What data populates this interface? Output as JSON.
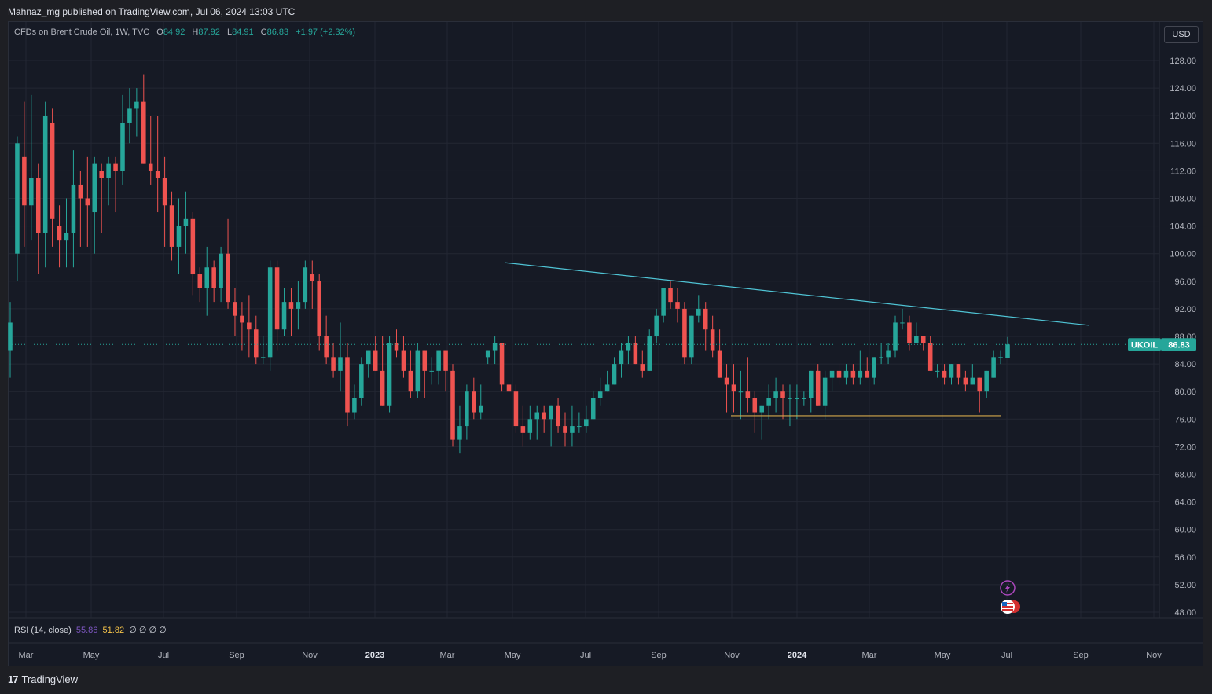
{
  "header": {
    "publisher": "Mahnaz_mg published on TradingView.com, Jul 06, 2024 13:03 UTC"
  },
  "legend": {
    "symbol": "CFDs on Brent Crude Oil, 1W, TVC",
    "open_label": "O",
    "open": "84.92",
    "high_label": "H",
    "high": "87.92",
    "low_label": "L",
    "low": "84.91",
    "close_label": "C",
    "close": "86.83",
    "change": "+1.97 (+2.32%)"
  },
  "currency_button": "USD",
  "price_tag": {
    "symbol": "UKOIL",
    "value": "86.83"
  },
  "rsi": {
    "label": "RSI (14, close)",
    "v1": "55.86",
    "v2": "51.82",
    "extras": "∅ ∅ ∅ ∅"
  },
  "footer": {
    "brand": "TradingView",
    "logo": "17"
  },
  "colors": {
    "up": "#26a69a",
    "down": "#ef5350",
    "trendline": "#4fc3d4",
    "support": "#d4a84b",
    "background": "#161a25",
    "grid": "#232733"
  },
  "icons": [
    "lightning-icon",
    "us-flag-icon"
  ],
  "chart_data": {
    "type": "candlestick",
    "interval": "1W",
    "y_axis": {
      "ticks": [
        "128.00",
        "124.00",
        "120.00",
        "116.00",
        "112.00",
        "108.00",
        "104.00",
        "100.00",
        "96.00",
        "92.00",
        "88.00",
        "84.00",
        "80.00",
        "76.00",
        "72.00",
        "68.00",
        "64.00",
        "60.00",
        "56.00",
        "52.00",
        "48.00"
      ],
      "ylim": [
        46.5,
        133
      ]
    },
    "x_axis": {
      "ticks": [
        "Mar",
        "May",
        "Jul",
        "Sep",
        "Nov",
        "2023",
        "Mar",
        "May",
        "Jul",
        "Sep",
        "Nov",
        "2024",
        "Mar",
        "May",
        "Jul",
        "Sep",
        "Nov"
      ],
      "bold": [
        "2023",
        "2024"
      ]
    },
    "last_price": 86.83,
    "candles": [
      {
        "o": 86,
        "h": 93,
        "l": 82,
        "c": 90
      },
      {
        "o": 100,
        "h": 117,
        "l": 96,
        "c": 116
      },
      {
        "o": 114,
        "h": 122,
        "l": 101,
        "c": 107
      },
      {
        "o": 107,
        "h": 123,
        "l": 102,
        "c": 111
      },
      {
        "o": 111,
        "h": 113,
        "l": 97,
        "c": 103
      },
      {
        "o": 103,
        "h": 122,
        "l": 98,
        "c": 120
      },
      {
        "o": 119,
        "h": 121,
        "l": 101,
        "c": 105
      },
      {
        "o": 104,
        "h": 107,
        "l": 98,
        "c": 102
      },
      {
        "o": 102,
        "h": 108,
        "l": 98,
        "c": 103
      },
      {
        "o": 103,
        "h": 115,
        "l": 98,
        "c": 110
      },
      {
        "o": 110,
        "h": 112,
        "l": 101,
        "c": 108
      },
      {
        "o": 108,
        "h": 114,
        "l": 101,
        "c": 107
      },
      {
        "o": 106,
        "h": 114,
        "l": 100,
        "c": 113
      },
      {
        "o": 112,
        "h": 113,
        "l": 103,
        "c": 111
      },
      {
        "o": 111,
        "h": 114,
        "l": 107,
        "c": 113
      },
      {
        "o": 113,
        "h": 114,
        "l": 106,
        "c": 112
      },
      {
        "o": 112,
        "h": 123,
        "l": 110,
        "c": 119
      },
      {
        "o": 119,
        "h": 124,
        "l": 116,
        "c": 121
      },
      {
        "o": 121,
        "h": 124,
        "l": 117,
        "c": 122
      },
      {
        "o": 122,
        "h": 126,
        "l": 113,
        "c": 113
      },
      {
        "o": 113,
        "h": 120,
        "l": 110,
        "c": 112
      },
      {
        "o": 112,
        "h": 120,
        "l": 106,
        "c": 111
      },
      {
        "o": 111,
        "h": 114,
        "l": 101,
        "c": 107
      },
      {
        "o": 107,
        "h": 109,
        "l": 99,
        "c": 101
      },
      {
        "o": 101,
        "h": 108,
        "l": 97,
        "c": 104
      },
      {
        "o": 104,
        "h": 109,
        "l": 100,
        "c": 105
      },
      {
        "o": 105,
        "h": 106,
        "l": 94,
        "c": 97
      },
      {
        "o": 97,
        "h": 98,
        "l": 93,
        "c": 95
      },
      {
        "o": 95,
        "h": 101,
        "l": 91,
        "c": 98
      },
      {
        "o": 98,
        "h": 99,
        "l": 93,
        "c": 95
      },
      {
        "o": 95,
        "h": 101,
        "l": 93,
        "c": 100
      },
      {
        "o": 100,
        "h": 105,
        "l": 92,
        "c": 93
      },
      {
        "o": 93,
        "h": 95,
        "l": 88,
        "c": 91
      },
      {
        "o": 91,
        "h": 93,
        "l": 86,
        "c": 90
      },
      {
        "o": 90,
        "h": 94,
        "l": 85,
        "c": 89
      },
      {
        "o": 89,
        "h": 91,
        "l": 84,
        "c": 85
      },
      {
        "o": 85,
        "h": 88,
        "l": 84,
        "c": 85
      },
      {
        "o": 85,
        "h": 99,
        "l": 83,
        "c": 98
      },
      {
        "o": 98,
        "h": 99,
        "l": 86,
        "c": 89
      },
      {
        "o": 89,
        "h": 95,
        "l": 88,
        "c": 93
      },
      {
        "o": 93,
        "h": 95,
        "l": 88,
        "c": 92
      },
      {
        "o": 92,
        "h": 96,
        "l": 89,
        "c": 93
      },
      {
        "o": 93,
        "h": 99,
        "l": 92,
        "c": 98
      },
      {
        "o": 97,
        "h": 99,
        "l": 92,
        "c": 96
      },
      {
        "o": 96,
        "h": 97,
        "l": 86,
        "c": 88
      },
      {
        "o": 88,
        "h": 91,
        "l": 84,
        "c": 85
      },
      {
        "o": 85,
        "h": 87,
        "l": 82,
        "c": 83
      },
      {
        "o": 83,
        "h": 90,
        "l": 80,
        "c": 85
      },
      {
        "o": 85,
        "h": 87,
        "l": 75,
        "c": 77
      },
      {
        "o": 77,
        "h": 81,
        "l": 76,
        "c": 79
      },
      {
        "o": 79,
        "h": 85,
        "l": 78,
        "c": 84
      },
      {
        "o": 84,
        "h": 86,
        "l": 82,
        "c": 86
      },
      {
        "o": 86,
        "h": 88,
        "l": 83,
        "c": 83
      },
      {
        "o": 83,
        "h": 88,
        "l": 78,
        "c": 78
      },
      {
        "o": 78,
        "h": 88,
        "l": 77,
        "c": 87
      },
      {
        "o": 87,
        "h": 89,
        "l": 85,
        "c": 86
      },
      {
        "o": 86,
        "h": 88,
        "l": 82,
        "c": 83
      },
      {
        "o": 83,
        "h": 86,
        "l": 79,
        "c": 80
      },
      {
        "o": 80,
        "h": 87,
        "l": 79,
        "c": 86
      },
      {
        "o": 86,
        "h": 86,
        "l": 79,
        "c": 83
      },
      {
        "o": 83,
        "h": 85,
        "l": 81,
        "c": 83
      },
      {
        "o": 83,
        "h": 86,
        "l": 81,
        "c": 86
      },
      {
        "o": 86,
        "h": 86,
        "l": 80,
        "c": 83
      },
      {
        "o": 83,
        "h": 84,
        "l": 72,
        "c": 73
      },
      {
        "o": 73,
        "h": 78,
        "l": 71,
        "c": 75
      },
      {
        "o": 75,
        "h": 81,
        "l": 73,
        "c": 80
      },
      {
        "o": 80,
        "h": 82,
        "l": 76,
        "c": 77
      },
      {
        "o": 77,
        "h": 81,
        "l": 76,
        "c": 78
      },
      {
        "o": 85,
        "h": 86,
        "l": 84,
        "c": 86
      },
      {
        "o": 86,
        "h": 88,
        "l": 84,
        "c": 87
      },
      {
        "o": 87,
        "h": 87,
        "l": 80,
        "c": 81
      },
      {
        "o": 81,
        "h": 82,
        "l": 77,
        "c": 80
      },
      {
        "o": 80,
        "h": 81,
        "l": 74,
        "c": 75
      },
      {
        "o": 75,
        "h": 78,
        "l": 72,
        "c": 74
      },
      {
        "o": 74,
        "h": 78,
        "l": 73,
        "c": 76
      },
      {
        "o": 76,
        "h": 78,
        "l": 73,
        "c": 77
      },
      {
        "o": 77,
        "h": 78,
        "l": 74,
        "c": 76
      },
      {
        "o": 76,
        "h": 78,
        "l": 72,
        "c": 78
      },
      {
        "o": 78,
        "h": 79,
        "l": 74,
        "c": 75
      },
      {
        "o": 75,
        "h": 77,
        "l": 72,
        "c": 74
      },
      {
        "o": 74,
        "h": 78,
        "l": 72,
        "c": 75
      },
      {
        "o": 75,
        "h": 77,
        "l": 74,
        "c": 75
      },
      {
        "o": 75,
        "h": 78,
        "l": 74,
        "c": 76
      },
      {
        "o": 76,
        "h": 80,
        "l": 76,
        "c": 79
      },
      {
        "o": 79,
        "h": 82,
        "l": 78,
        "c": 80
      },
      {
        "o": 80,
        "h": 83,
        "l": 80,
        "c": 81
      },
      {
        "o": 81,
        "h": 85,
        "l": 81,
        "c": 84
      },
      {
        "o": 84,
        "h": 87,
        "l": 82,
        "c": 86
      },
      {
        "o": 86,
        "h": 88,
        "l": 84,
        "c": 87
      },
      {
        "o": 87,
        "h": 88,
        "l": 84,
        "c": 84
      },
      {
        "o": 84,
        "h": 86,
        "l": 82,
        "c": 83
      },
      {
        "o": 83,
        "h": 89,
        "l": 83,
        "c": 88
      },
      {
        "o": 88,
        "h": 92,
        "l": 87,
        "c": 91
      },
      {
        "o": 91,
        "h": 95,
        "l": 90,
        "c": 95
      },
      {
        "o": 95,
        "h": 96,
        "l": 92,
        "c": 93
      },
      {
        "o": 93,
        "h": 95,
        "l": 90,
        "c": 92
      },
      {
        "o": 92,
        "h": 93,
        "l": 84,
        "c": 85
      },
      {
        "o": 85,
        "h": 91,
        "l": 84,
        "c": 91
      },
      {
        "o": 91,
        "h": 94,
        "l": 90,
        "c": 92
      },
      {
        "o": 92,
        "h": 93,
        "l": 86,
        "c": 89
      },
      {
        "o": 89,
        "h": 91,
        "l": 85,
        "c": 86
      },
      {
        "o": 86,
        "h": 89,
        "l": 82,
        "c": 82
      },
      {
        "o": 82,
        "h": 84,
        "l": 77,
        "c": 81
      },
      {
        "o": 81,
        "h": 84,
        "l": 77,
        "c": 80
      },
      {
        "o": 80,
        "h": 83,
        "l": 76,
        "c": 80
      },
      {
        "o": 80,
        "h": 85,
        "l": 77,
        "c": 79
      },
      {
        "o": 79,
        "h": 80,
        "l": 74,
        "c": 77
      },
      {
        "o": 77,
        "h": 78,
        "l": 73,
        "c": 78
      },
      {
        "o": 78,
        "h": 81,
        "l": 76,
        "c": 79
      },
      {
        "o": 79,
        "h": 82,
        "l": 77,
        "c": 80
      },
      {
        "o": 80,
        "h": 81,
        "l": 76,
        "c": 79
      },
      {
        "o": 79,
        "h": 81,
        "l": 75,
        "c": 79
      },
      {
        "o": 79,
        "h": 81,
        "l": 76,
        "c": 79
      },
      {
        "o": 79,
        "h": 80,
        "l": 78,
        "c": 79
      },
      {
        "o": 79,
        "h": 83,
        "l": 77,
        "c": 83
      },
      {
        "o": 83,
        "h": 84,
        "l": 78,
        "c": 78
      },
      {
        "o": 78,
        "h": 83,
        "l": 76,
        "c": 82
      },
      {
        "o": 82,
        "h": 83,
        "l": 80,
        "c": 83
      },
      {
        "o": 83,
        "h": 84,
        "l": 81,
        "c": 82
      },
      {
        "o": 82,
        "h": 84,
        "l": 81,
        "c": 83
      },
      {
        "o": 83,
        "h": 84,
        "l": 81,
        "c": 82
      },
      {
        "o": 82,
        "h": 86,
        "l": 81,
        "c": 83
      },
      {
        "o": 83,
        "h": 85,
        "l": 82,
        "c": 82
      },
      {
        "o": 82,
        "h": 85,
        "l": 81,
        "c": 85
      },
      {
        "o": 85,
        "h": 87,
        "l": 84,
        "c": 85
      },
      {
        "o": 85,
        "h": 87,
        "l": 84,
        "c": 86
      },
      {
        "o": 86,
        "h": 91,
        "l": 85,
        "c": 90
      },
      {
        "o": 90,
        "h": 92,
        "l": 89,
        "c": 90
      },
      {
        "o": 90,
        "h": 91,
        "l": 86,
        "c": 87
      },
      {
        "o": 87,
        "h": 90,
        "l": 87,
        "c": 88
      },
      {
        "o": 88,
        "h": 88,
        "l": 86,
        "c": 87
      },
      {
        "o": 87,
        "h": 88,
        "l": 83,
        "c": 83
      },
      {
        "o": 83,
        "h": 84,
        "l": 82,
        "c": 83
      },
      {
        "o": 83,
        "h": 84,
        "l": 81,
        "c": 82
      },
      {
        "o": 82,
        "h": 84,
        "l": 81,
        "c": 84
      },
      {
        "o": 84,
        "h": 84,
        "l": 81,
        "c": 82
      },
      {
        "o": 82,
        "h": 83,
        "l": 80,
        "c": 81
      },
      {
        "o": 81,
        "h": 84,
        "l": 81,
        "c": 82
      },
      {
        "o": 82,
        "h": 82,
        "l": 77,
        "c": 80
      },
      {
        "o": 80,
        "h": 83,
        "l": 79,
        "c": 83
      },
      {
        "o": 82,
        "h": 86,
        "l": 82,
        "c": 85
      },
      {
        "o": 85,
        "h": 86,
        "l": 84,
        "c": 85
      },
      {
        "o": 84.92,
        "h": 87.92,
        "l": 84.91,
        "c": 86.83
      }
    ],
    "annotations": [
      {
        "type": "trendline",
        "points": [
          [
            "May 2023",
            98.7
          ],
          [
            "Sep 2024",
            89.6
          ]
        ]
      },
      {
        "type": "support",
        "points": [
          [
            "Nov 2023",
            76.5
          ],
          [
            "Jun 2024",
            76.5
          ]
        ]
      }
    ]
  }
}
